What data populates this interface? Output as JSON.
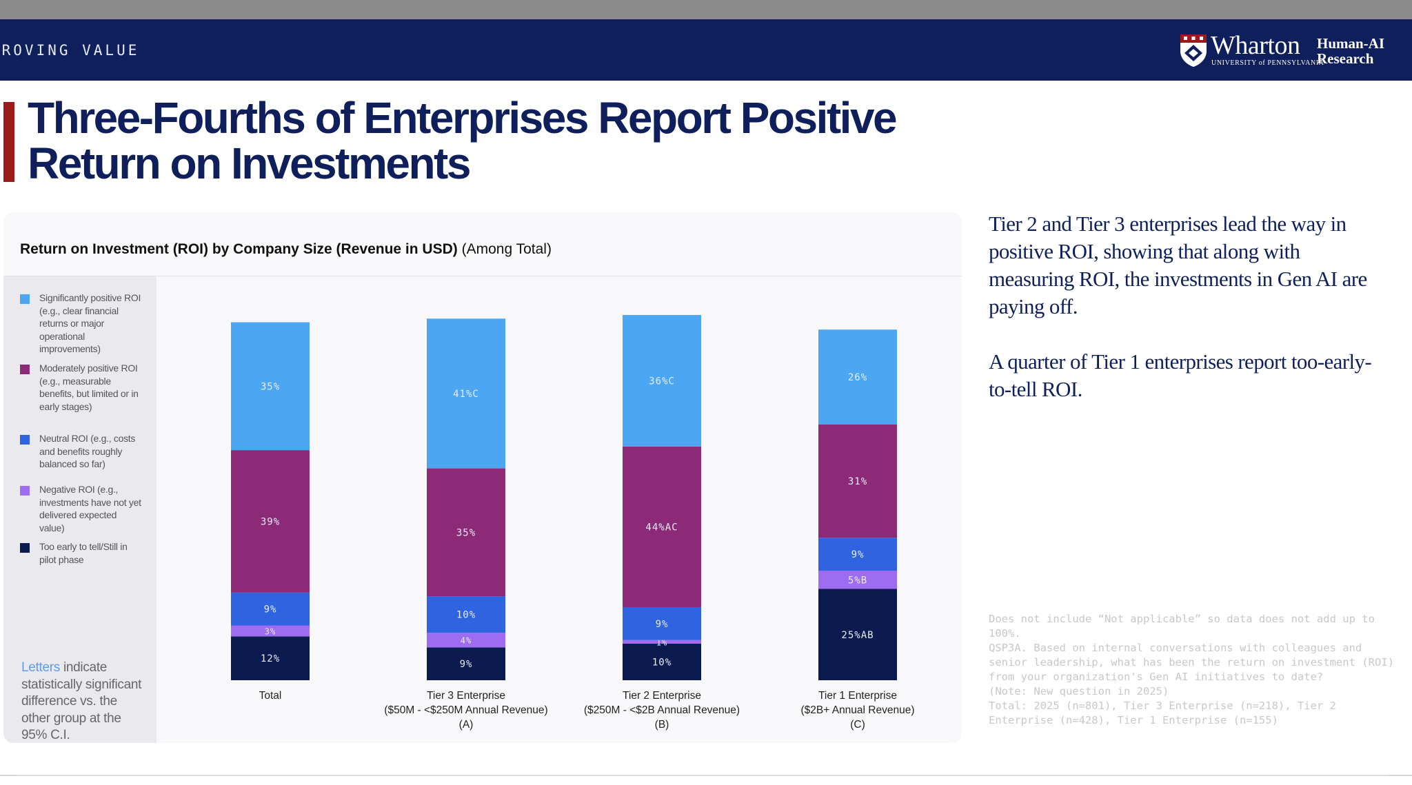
{
  "header": {
    "section_label": "PROVING VALUE",
    "brand": "Wharton",
    "university": "UNIVERSITY of PENNSYLVANIA",
    "unit_line1": "Human-AI",
    "unit_line2": "Research"
  },
  "colors": {
    "navy": "#0f1f5c",
    "accent_red": "#9b1b1b",
    "sig_positive": "#4da6f2",
    "mod_positive": "#8c2a78",
    "neutral": "#2f63e0",
    "negative": "#9e6cf0",
    "too_early": "#0b1a4f"
  },
  "slide_title": "Three-Fourths of Enterprises Report Positive Return on Investments",
  "chart_data": {
    "type": "bar",
    "stacked": true,
    "title_bold": "Return on Investment (ROI) by Company Size (Revenue in USD)",
    "title_rest": "(Among Total)",
    "categories": [
      [
        "Total"
      ],
      [
        "Tier 3 Enterprise",
        "($50M - <$250M Annual Revenue)",
        "(A)"
      ],
      [
        "Tier 2 Enterprise",
        "($250M - <$2B Annual Revenue)",
        "(B)"
      ],
      [
        "Tier 1 Enterprise",
        "($2B+ Annual Revenue)",
        "(C)"
      ]
    ],
    "series": [
      {
        "name": "Too early to tell/Still in pilot phase",
        "color": "#0b1a4f",
        "values": [
          12,
          9,
          10,
          25
        ],
        "labels": [
          "12%",
          "9%",
          "10%",
          "25%AB"
        ]
      },
      {
        "name": "Negative ROI (e.g., investments have not yet delivered expected value)",
        "color": "#9e6cf0",
        "values": [
          3,
          4,
          1,
          5
        ],
        "labels": [
          "3%",
          "4%",
          "1%",
          "5%B"
        ]
      },
      {
        "name": "Neutral ROI (e.g., costs and benefits roughly balanced so far)",
        "color": "#2f63e0",
        "values": [
          9,
          10,
          9,
          9
        ],
        "labels": [
          "9%",
          "10%",
          "9%",
          "9%"
        ]
      },
      {
        "name": "Moderately positive ROI (e.g., measurable benefits, but limited or in early stages)",
        "color": "#8c2a78",
        "values": [
          39,
          35,
          44,
          31
        ],
        "labels": [
          "39%",
          "35%",
          "44%AC",
          "31%"
        ]
      },
      {
        "name": "Significantly positive ROI (e.g., clear financial returns or major operational improvements)",
        "color": "#4da6f2",
        "values": [
          35,
          41,
          36,
          26
        ],
        "labels": [
          "35%",
          "41%C",
          "36%C",
          "26%"
        ]
      }
    ],
    "legend_position": "left",
    "grid": false
  },
  "legend": [
    {
      "color": "#4da6f2",
      "text": "Significantly positive ROI (e.g., clear financial returns or major operational improvements)"
    },
    {
      "color": "#8c2a78",
      "text": "Moderately positive ROI (e.g., measurable benefits, but limited or in early stages)"
    },
    {
      "color": "#2f63e0",
      "text": "Neutral ROI (e.g., costs and benefits roughly balanced so far)"
    },
    {
      "color": "#9e6cf0",
      "text": "Negative ROI (e.g., investments have not yet delivered expected value)"
    },
    {
      "color": "#0b1a4f",
      "text": "Too early to tell/Still in pilot phase"
    }
  ],
  "letters_note": {
    "highlight": "Letters",
    "rest": " indicate statistically significant difference vs. the other group at the 95% C.I."
  },
  "side_text": {
    "p1": "Tier 2 and Tier 3 enterprises lead the way in positive ROI, showing that along with measuring ROI, the investments in Gen AI are paying off.",
    "p2": "A quarter of Tier 1 enterprises report too-early-to-tell ROI."
  },
  "footnote": "Does not include “Not applicable” so data does not add up to 100%.\nQSP3A. Based on internal conversations with colleagues and senior leadership, what has been the return on investment (ROI) from your organization's Gen AI initiatives to date?\n(Note: New question in 2025)\nTotal: 2025 (n=801), Tier 3 Enterprise (n=218), Tier 2 Enterprise (n=428), Tier 1 Enterprise (n=155)"
}
